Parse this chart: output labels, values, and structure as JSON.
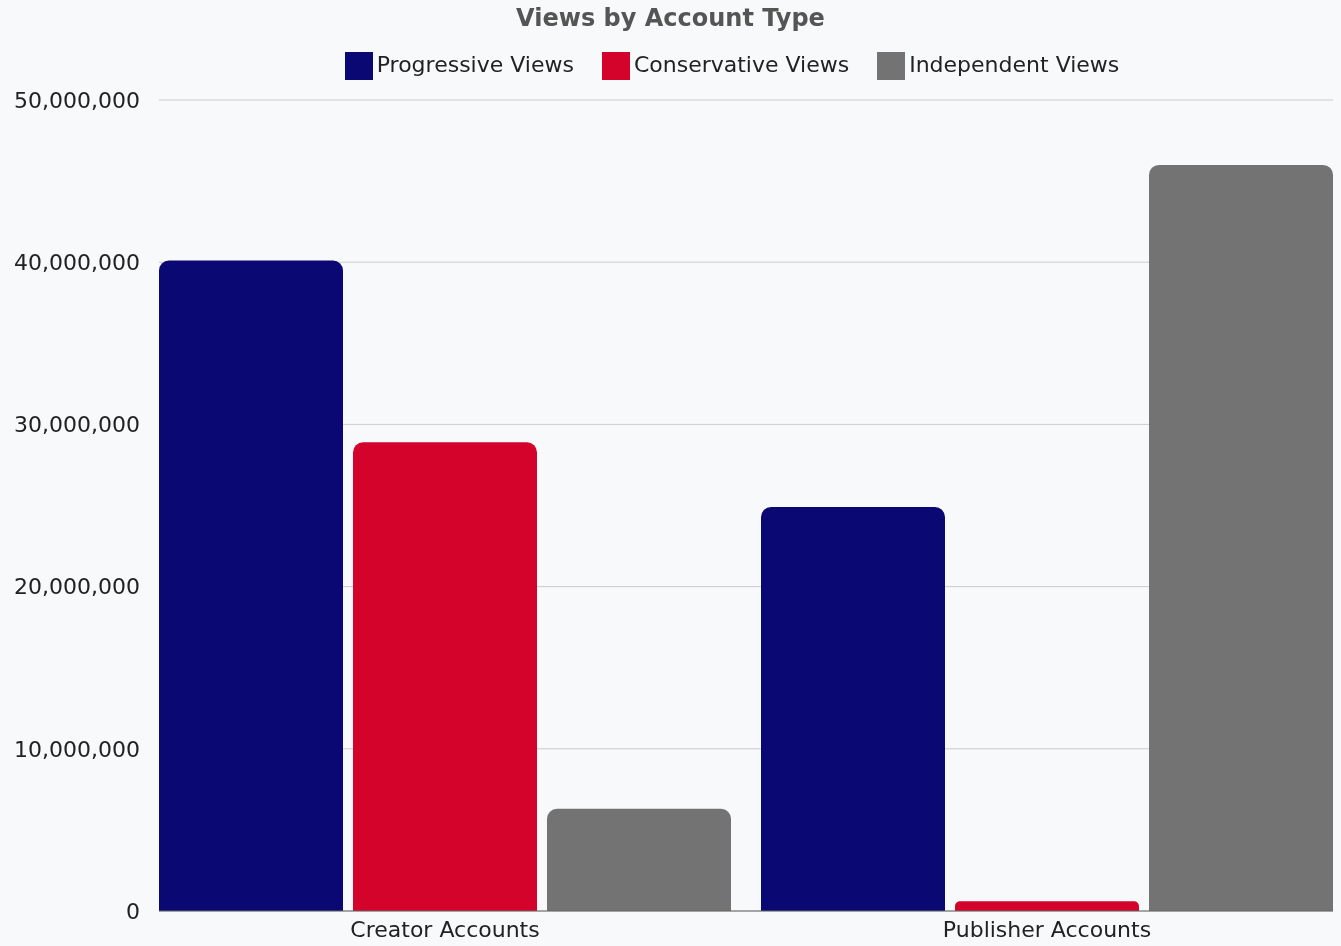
{
  "chart_data": {
    "type": "bar",
    "title": "Views by Account Type",
    "categories": [
      "Creator Accounts",
      "Publisher Accounts"
    ],
    "series": [
      {
        "name": "Progressive Views",
        "color": "#0a0873",
        "values": [
          40100000,
          24900000
        ]
      },
      {
        "name": "Conservative Views",
        "color": "#d3032b",
        "values": [
          28900000,
          600000
        ]
      },
      {
        "name": "Independent Views",
        "color": "#737373",
        "values": [
          6300000,
          46000000
        ]
      }
    ],
    "ylim": [
      0,
      50000000
    ],
    "yticks": [
      0,
      {
        "value": 10000000,
        "label": "10,000,000"
      },
      {
        "value": 20000000,
        "label": "20,000,000"
      },
      {
        "value": 30000000,
        "label": "30,000,000"
      },
      {
        "value": 40000000,
        "label": "40,000,000"
      },
      {
        "value": 50000000,
        "label": "50,000,000"
      }
    ],
    "grid": "y",
    "legend": "top"
  }
}
